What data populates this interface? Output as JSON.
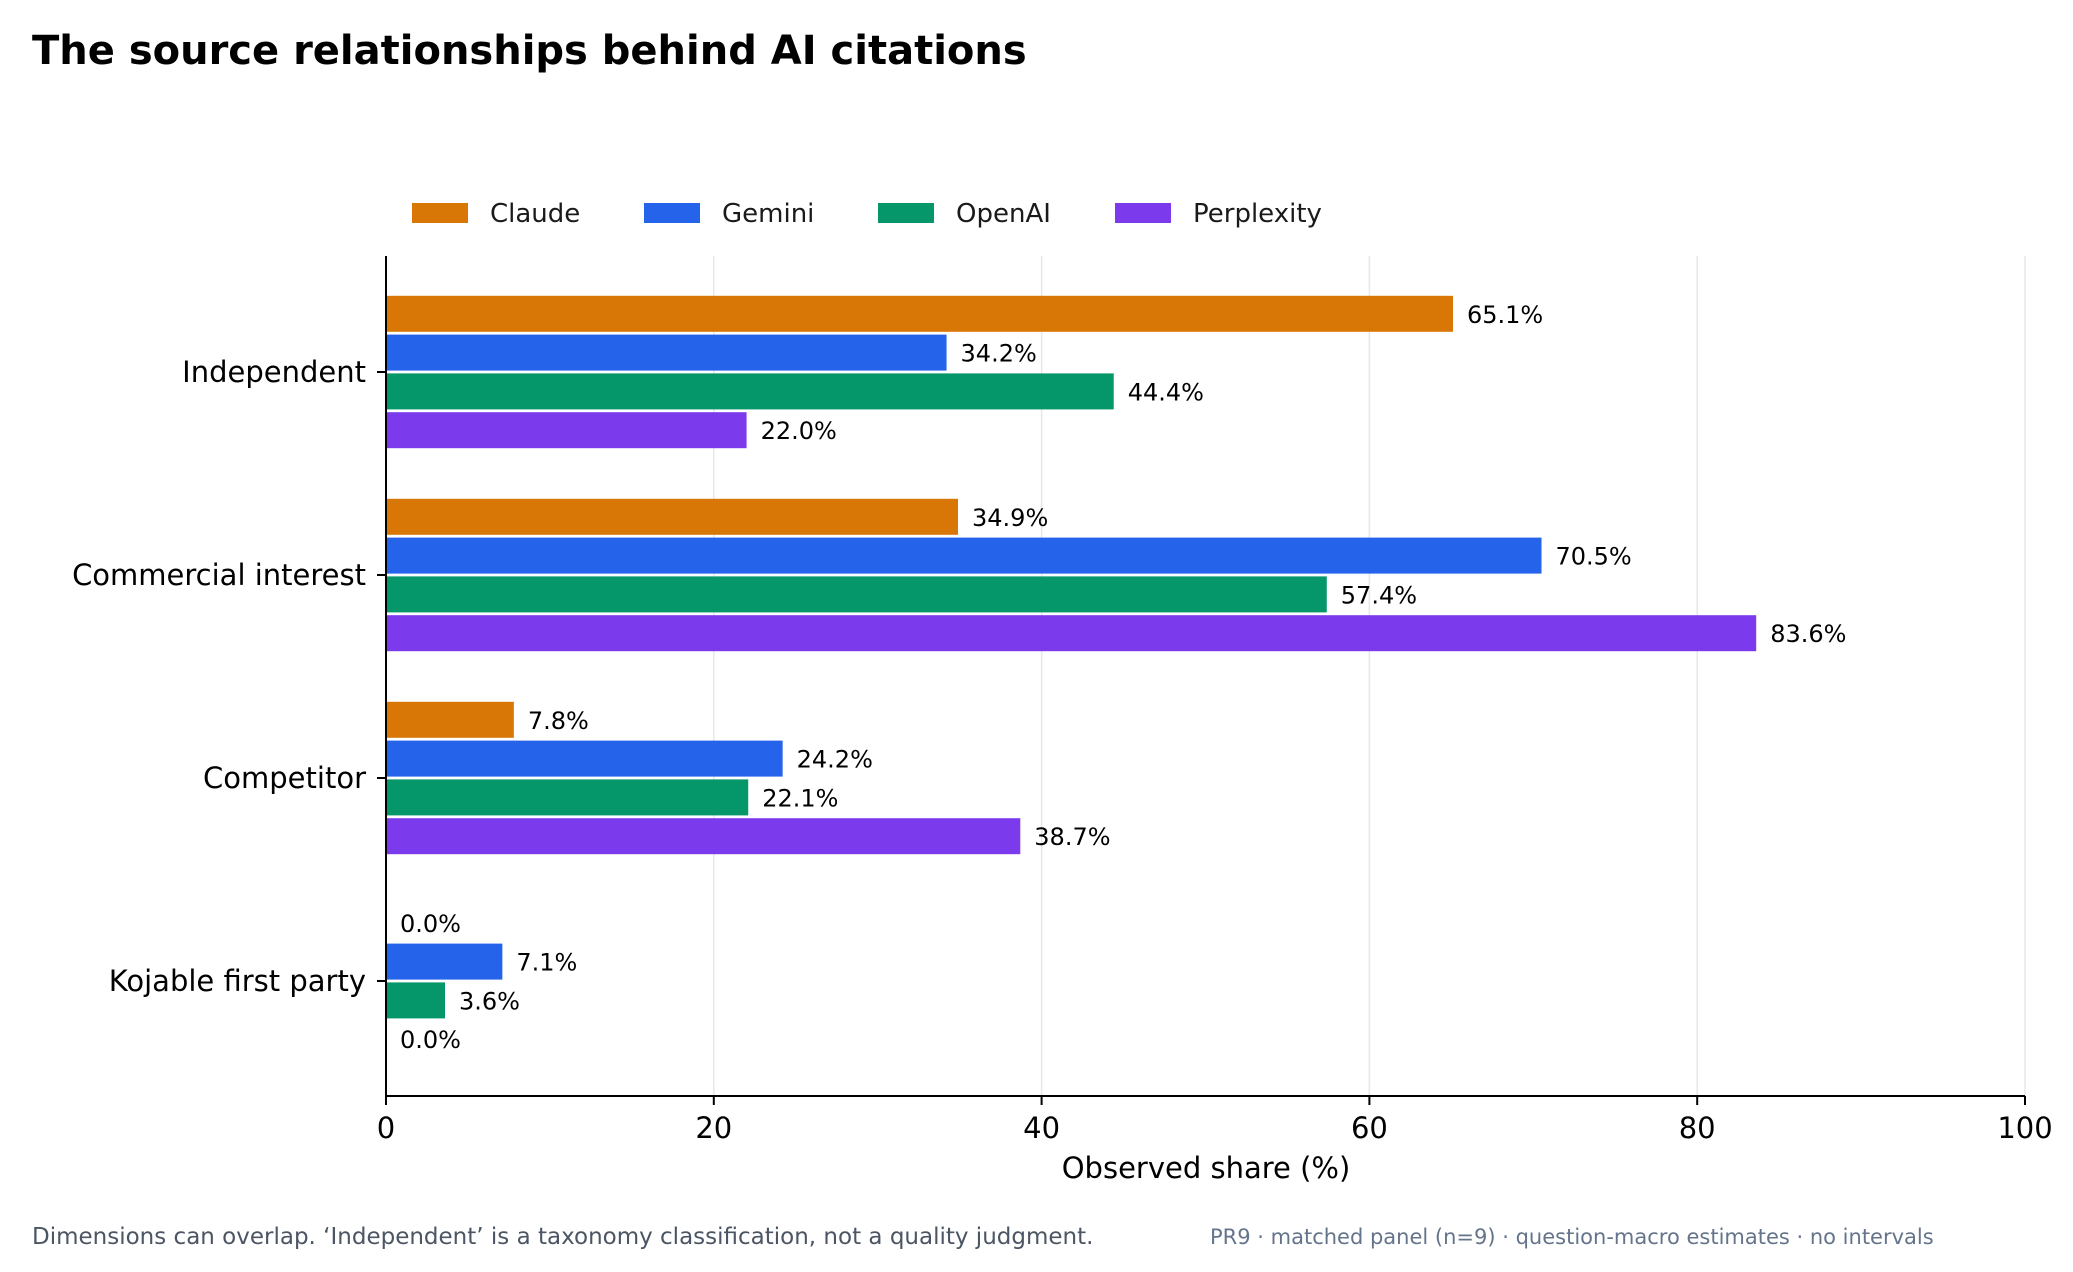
{
  "chart_data": {
    "type": "bar",
    "orientation": "horizontal",
    "title": "The source relationships behind AI citations",
    "xlabel": "Observed share (%)",
    "ylabel": "",
    "xlim": [
      0,
      100
    ],
    "xticks": [
      0,
      20,
      40,
      60,
      80,
      100
    ],
    "grid": "vertical",
    "legend": "top",
    "categories": [
      "Independent",
      "Commercial interest",
      "Competitor",
      "Kojable first party"
    ],
    "series": [
      {
        "name": "Claude",
        "color": "#d97706",
        "values": [
          65.1,
          34.9,
          7.8,
          0.0
        ],
        "labels": [
          "65.1%",
          "34.9%",
          "7.8%",
          "0.0%"
        ]
      },
      {
        "name": "Gemini",
        "color": "#2563eb",
        "values": [
          34.2,
          70.5,
          24.2,
          7.1
        ],
        "labels": [
          "34.2%",
          "70.5%",
          "24.2%",
          "7.1%"
        ]
      },
      {
        "name": "OpenAI",
        "color": "#059669",
        "values": [
          44.4,
          57.4,
          22.1,
          3.6
        ],
        "labels": [
          "44.4%",
          "57.4%",
          "22.1%",
          "3.6%"
        ]
      },
      {
        "name": "Perplexity",
        "color": "#7c3aed",
        "values": [
          22.0,
          83.6,
          38.7,
          0.0
        ],
        "labels": [
          "22.0%",
          "83.6%",
          "38.7%",
          "0.0%"
        ]
      }
    ]
  },
  "footnote": {
    "text": "Dimensions can overlap. ‘Independent’ is a taxonomy classification, not a quality judgment.",
    "meta": "PR9 · matched panel (n=9) · question-macro estimates · no intervals"
  }
}
